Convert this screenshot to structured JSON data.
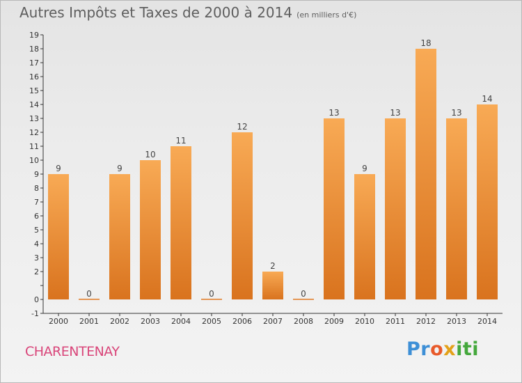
{
  "chart_data": {
    "type": "bar",
    "title": "Autres Impôts et Taxes de 2000 à 2014",
    "unit_note": "(en milliers d'€)",
    "xlabel": "",
    "ylabel": "",
    "categories": [
      "2000",
      "2001",
      "2002",
      "2003",
      "2004",
      "2005",
      "2006",
      "2007",
      "2008",
      "2009",
      "2010",
      "2011",
      "2012",
      "2013",
      "2014"
    ],
    "values": [
      9,
      0,
      9,
      10,
      11,
      0,
      12,
      2,
      0,
      13,
      9,
      13,
      18,
      13,
      14
    ],
    "ylim": [
      -1,
      19
    ],
    "yticks": [
      "-1",
      "0",
      "",
      "2",
      "3",
      "4",
      "5",
      "6",
      "7",
      "8",
      "9",
      "10",
      "11",
      "12",
      "13",
      "14",
      "15",
      "16",
      "17",
      "18",
      "19"
    ],
    "grid": false,
    "bar_color": "#f0913a"
  },
  "footer": {
    "commune": "CHARENTENAY",
    "logo": [
      "Pr",
      "o",
      "x",
      "iti"
    ]
  }
}
